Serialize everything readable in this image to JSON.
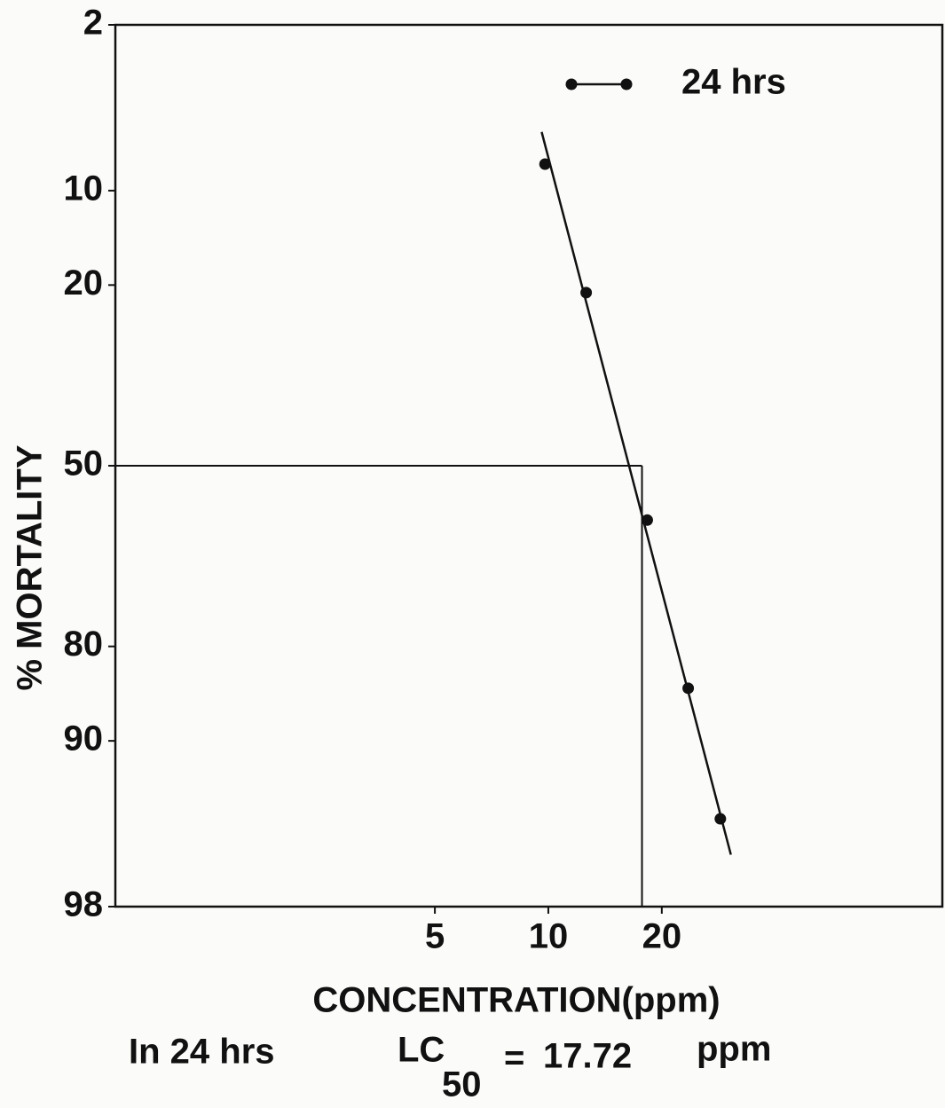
{
  "chart_data": {
    "type": "probit-line",
    "x_label": "CONCENTRATION(ppm)",
    "y_label": "% MORTALITY",
    "xscale": "log",
    "yscale": "probit",
    "xlim": [
      0.71,
      111
    ],
    "xticks": [
      5,
      10,
      20
    ],
    "ylim": [
      2,
      98
    ],
    "yticks": [
      2,
      10,
      20,
      50,
      80,
      90,
      98
    ],
    "series": [
      {
        "name": "24 hrs",
        "color": "#111111",
        "x": [
          9.8,
          12.6,
          18.3,
          23.5,
          28.6
        ],
        "values": [
          8,
          21,
          60,
          85,
          95
        ]
      }
    ],
    "fit": {
      "x": [
        9.6,
        30.5
      ],
      "y": [
        6,
        96.5
      ]
    },
    "reference_y": 50,
    "note": {
      "prefix": "In 24  hrs",
      "lc": "LC",
      "lc_sub": "50",
      "eq": "=",
      "value": 17.72,
      "unit": "ppm"
    }
  }
}
